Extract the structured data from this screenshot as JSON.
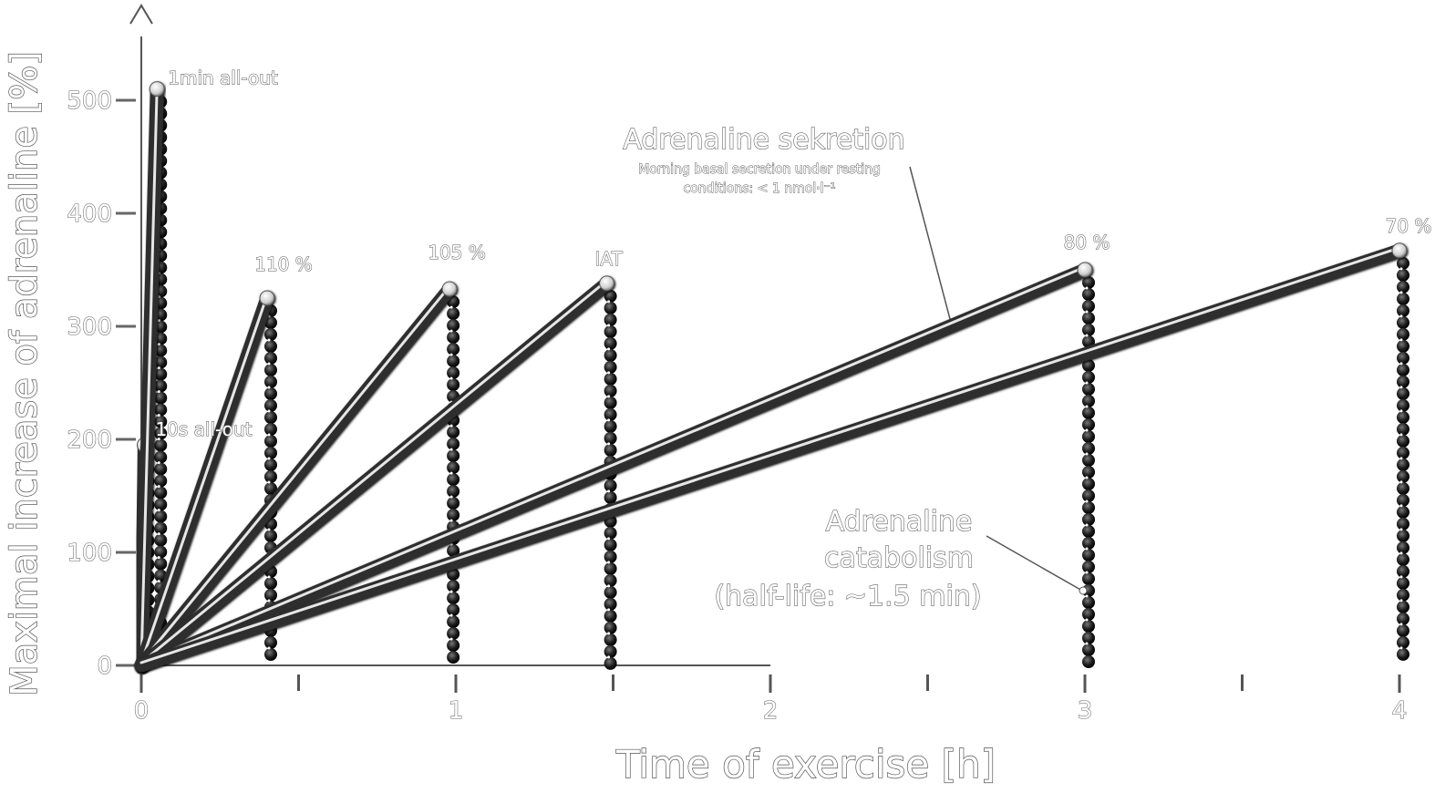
{
  "chart_data": {
    "type": "line",
    "xlabel": "Time of exercise [h]",
    "ylabel": "Maximal increase of adrenaline [%]",
    "xlim": [
      0,
      4
    ],
    "ylim": [
      0,
      500
    ],
    "x_ticks": [
      0,
      1,
      2,
      3,
      4
    ],
    "x_tick_labels": [
      "0",
      "1",
      "2",
      "3",
      "4"
    ],
    "x_minor_ticks": [
      0.5,
      1.5,
      2.5,
      3.5
    ],
    "y_ticks": [
      0,
      100,
      200,
      300,
      400,
      500
    ],
    "y_tick_labels": [
      "0",
      "100",
      "200",
      "300",
      "400",
      "500"
    ],
    "grid": false,
    "series": [
      {
        "name": "10s all-out",
        "peak_x": 0.01,
        "peak_y": 195
      },
      {
        "name": "1min all-out",
        "peak_x": 0.05,
        "peak_y": 510
      },
      {
        "name": "110 %",
        "peak_x": 0.4,
        "peak_y": 325
      },
      {
        "name": "105 %",
        "peak_x": 0.98,
        "peak_y": 333
      },
      {
        "name": "IAT",
        "peak_x": 1.48,
        "peak_y": 338
      },
      {
        "name": "80 %",
        "peak_x": 3.0,
        "peak_y": 350
      },
      {
        "name": "70 %",
        "peak_x": 4.0,
        "peak_y": 367
      }
    ],
    "annotations": {
      "secretion_title": "Adrenaline sekretion",
      "secretion_note_line1": "Morning basal secretion under resting",
      "secretion_note_line2": "conditions: < 1 nmol·l⁻¹",
      "catabolism_line1": "Adrenaline",
      "catabolism_line2": "catabolism",
      "catabolism_line3": "(half-life: ~1.5 min)"
    },
    "colors": {
      "secretion_line": "#3a3a3a",
      "catabolism_beads": "#1a1a1a",
      "highlight": "#ffffff"
    }
  }
}
